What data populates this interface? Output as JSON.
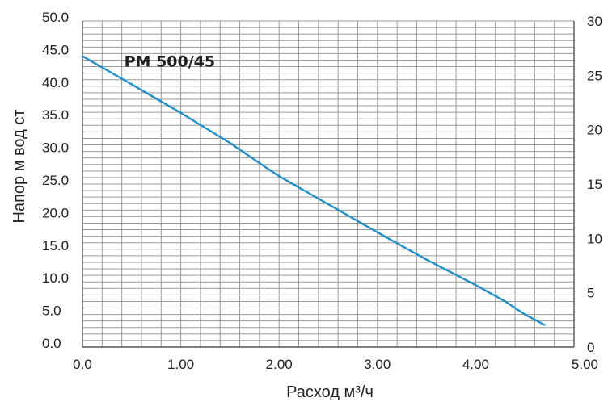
{
  "chart_data": {
    "type": "line",
    "title": "",
    "xlabel": "Расход м³/ч",
    "ylabel": "Напор м вод ст",
    "xlim": [
      0,
      5
    ],
    "ylim": [
      0,
      50
    ],
    "y2lim": [
      0,
      30
    ],
    "x_ticks": [
      "0.0",
      "1.00",
      "2.00",
      "3.00",
      "4.00",
      "5.00"
    ],
    "y_ticks": [
      "0.0",
      "5.0",
      "10.0",
      "15.0",
      "20.0",
      "25.0",
      "30.0",
      "35.0",
      "40.0",
      "45.0",
      "50.0"
    ],
    "y2_ticks": [
      "0",
      "5",
      "10",
      "15",
      "20",
      "25",
      "30"
    ],
    "grid": true,
    "annotations": [
      {
        "text": "PM 500/45",
        "x": 0.4,
        "y": 43.4
      }
    ],
    "series": [
      {
        "color": "#1e8fd0",
        "x": [
          0.0,
          0.5,
          1.0,
          1.5,
          1.9,
          2.0,
          2.5,
          3.0,
          3.5,
          4.0,
          4.3,
          4.5,
          4.7
        ],
        "y": [
          44.6,
          40.3,
          35.9,
          31.3,
          27.2,
          26.2,
          21.9,
          17.6,
          13.4,
          9.5,
          7.0,
          5.0,
          3.4
        ]
      }
    ]
  }
}
